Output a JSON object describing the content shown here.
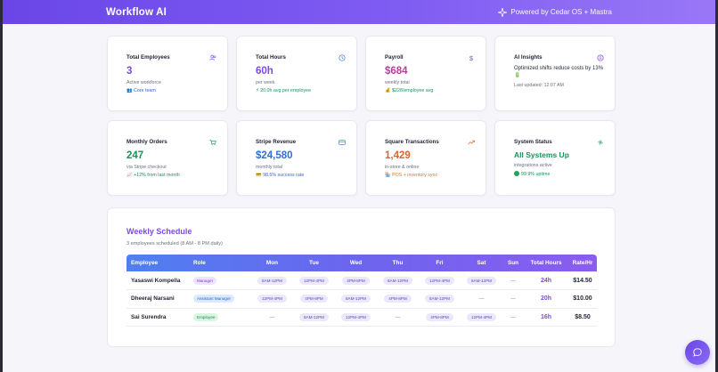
{
  "header": {
    "title": "Workflow AI",
    "powered_by": "Powered by Cedar OS + Mastra"
  },
  "cards": {
    "employees": {
      "title": "Total Employees",
      "value": "3",
      "sub": "Active workforce",
      "note": "👥 Core team",
      "icon": "users-icon"
    },
    "hours": {
      "title": "Total Hours",
      "value": "60h",
      "sub": "per week",
      "note": "⚡ 20.0h avg per employee",
      "icon": "clock-icon"
    },
    "payroll": {
      "title": "Payroll",
      "value": "$684",
      "sub": "weekly total",
      "note": "💰 $228/employee avg",
      "icon": "dollar-icon"
    },
    "insights": {
      "title": "AI Insights",
      "text": "Optimized shifts reduce costs by 13% 🔋",
      "updated": "Last updated: 12:07 AM",
      "icon": "info-icon"
    },
    "orders": {
      "title": "Monthly Orders",
      "value": "247",
      "sub": "via Stripe checkout",
      "note": "📈 +12% from last month",
      "icon": "cart-icon"
    },
    "stripe": {
      "title": "Stripe Revenue",
      "value": "$24,580",
      "sub": "monthly total",
      "note": "💳 98.5% success rate",
      "icon": "card-icon"
    },
    "square": {
      "title": "Square Transactions",
      "value": "1,429",
      "sub": "in-store & online",
      "note": "🏪 POS + inventory sync",
      "icon": "trend-icon"
    },
    "status": {
      "title": "System Status",
      "value": "All Systems Up",
      "sub": "integrations active",
      "note": "99.9% uptime",
      "icon": "gear-icon"
    }
  },
  "schedule": {
    "title": "Weekly Schedule",
    "subtitle": "3 employees scheduled (8 AM - 8 PM daily)",
    "columns": [
      "Employee",
      "Role",
      "Mon",
      "Tue",
      "Wed",
      "Thu",
      "Fri",
      "Sat",
      "Sun",
      "Total Hours",
      "Rate/Hr"
    ],
    "rows": [
      {
        "name": "Yasaswi Kompella",
        "role": "Manager",
        "days": [
          "8AM-12PM",
          "12PM-4PM",
          "4PM-8PM",
          "8AM-12PM",
          "12PM-4PM",
          "8AM-12PM",
          "—"
        ],
        "hours": "24h",
        "rate": "$14.50"
      },
      {
        "name": "Dheeraj Narsani",
        "role": "Assistant Manager",
        "days": [
          "12PM-4PM",
          "4PM-8PM",
          "8AM-12PM",
          "4PM-8PM",
          "8AM-12PM",
          "—",
          "—"
        ],
        "hours": "20h",
        "rate": "$10.00"
      },
      {
        "name": "Sai Surendra",
        "role": "Employee",
        "days": [
          "—",
          "8AM-12PM",
          "12PM-4PM",
          "—",
          "4PM-8PM",
          "12PM-4PM",
          "—"
        ],
        "hours": "16h",
        "rate": "$8.50"
      }
    ]
  },
  "chat": {
    "icon": "chat-icon"
  }
}
